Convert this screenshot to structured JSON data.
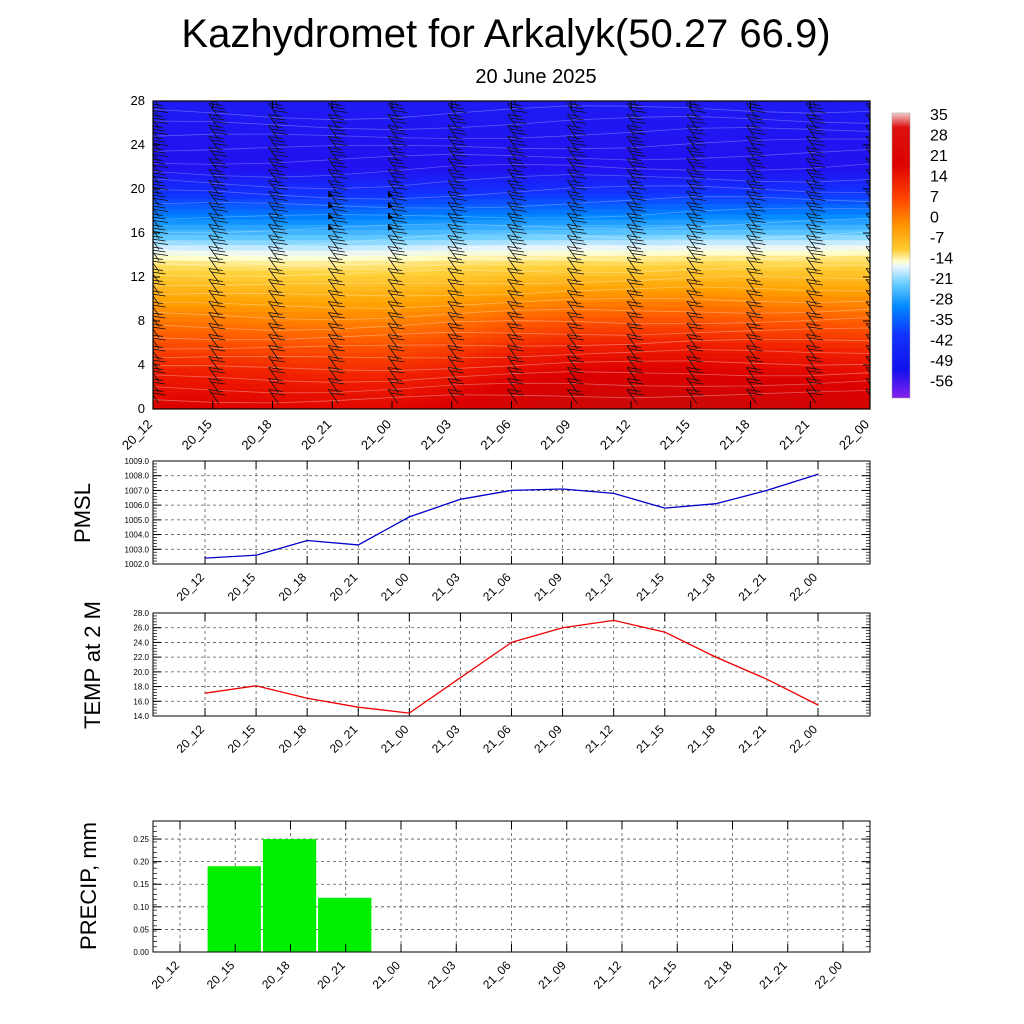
{
  "title": "Kazhydromet for Arkalyk(50.27 66.9)",
  "subtitle": "20 June 2025",
  "time_labels": [
    "20_12",
    "20_15",
    "20_18",
    "20_21",
    "21_00",
    "21_03",
    "21_06",
    "21_09",
    "21_12",
    "21_15",
    "21_18",
    "21_21",
    "22_00"
  ],
  "colors": {
    "pmsl_line": "#0000cc",
    "temp_line": "#ee0000",
    "precip_bar": "#00ee00",
    "grid": "#555555"
  },
  "chart_data": [
    {
      "type": "heatmap",
      "name": "temperature-height cross section",
      "categories": [
        "20_12",
        "20_15",
        "20_18",
        "20_21",
        "21_00",
        "21_03",
        "21_06",
        "21_09",
        "21_12",
        "21_15",
        "21_18",
        "21_21",
        "22_00"
      ],
      "y_ticks": [
        0,
        4,
        8,
        12,
        16,
        20,
        24,
        28
      ],
      "ylim": [
        0,
        28
      ],
      "colorbar_labels": [
        "35",
        "28",
        "21",
        "14",
        "7",
        "0",
        "-7",
        "-14",
        "-21",
        "-28",
        "-35",
        "-42",
        "-49",
        "-56"
      ],
      "colorbar_range": [
        -63,
        42
      ],
      "freezing_level": [
        13.3,
        13.2,
        13.1,
        13.1,
        13.2,
        13.4,
        13.5,
        13.6,
        13.6,
        13.7,
        13.7,
        13.7,
        13.8
      ],
      "surface_temp": [
        26,
        26,
        25,
        24,
        24,
        27,
        32,
        35,
        36,
        36,
        34,
        33,
        31
      ],
      "coldest_level": 22,
      "wind_barbs": "present"
    },
    {
      "type": "line",
      "ylabel": "PMSL",
      "categories": [
        "20_12",
        "20_15",
        "20_18",
        "20_21",
        "21_00",
        "21_03",
        "21_06",
        "21_09",
        "21_12",
        "21_15",
        "21_18",
        "21_21",
        "22_00"
      ],
      "values": [
        1002.4,
        1002.6,
        1003.6,
        1003.3,
        1005.2,
        1006.4,
        1007.0,
        1007.1,
        1006.8,
        1005.8,
        1006.1,
        1007.0,
        1008.1
      ],
      "y_ticks": [
        "1002.0",
        "1003.0",
        "1004.0",
        "1005.0",
        "1006.0",
        "1007.0",
        "1008.0",
        "1009.0"
      ],
      "ylim": [
        1002,
        1009
      ],
      "grid": true
    },
    {
      "type": "line",
      "ylabel": "TEMP at 2 M",
      "categories": [
        "20_12",
        "20_15",
        "20_18",
        "20_21",
        "21_00",
        "21_03",
        "21_06",
        "21_09",
        "21_12",
        "21_15",
        "21_18",
        "21_21",
        "22_00"
      ],
      "values": [
        17.1,
        18.1,
        16.4,
        15.2,
        14.4,
        19.2,
        24.0,
        26.0,
        27.0,
        25.4,
        22.0,
        19.0,
        15.5
      ],
      "y_ticks": [
        "14.0",
        "16.0",
        "18.0",
        "20.0",
        "22.0",
        "24.0",
        "26.0",
        "28.0"
      ],
      "ylim": [
        14,
        28
      ],
      "grid": true
    },
    {
      "type": "bar",
      "ylabel": "PRECIP, mm",
      "categories": [
        "20_12",
        "20_15",
        "20_18",
        "20_21",
        "21_00",
        "21_03",
        "21_06",
        "21_09",
        "21_12",
        "21_15",
        "21_18",
        "21_21",
        "22_00"
      ],
      "values": [
        0,
        0.19,
        0.25,
        0.12,
        0,
        0,
        0,
        0,
        0,
        0,
        0,
        0,
        0
      ],
      "y_ticks": [
        "0.00",
        "0.05",
        "0.10",
        "0.15",
        "0.20",
        "0.25"
      ],
      "ylim": [
        0,
        0.29
      ],
      "grid": true
    }
  ]
}
